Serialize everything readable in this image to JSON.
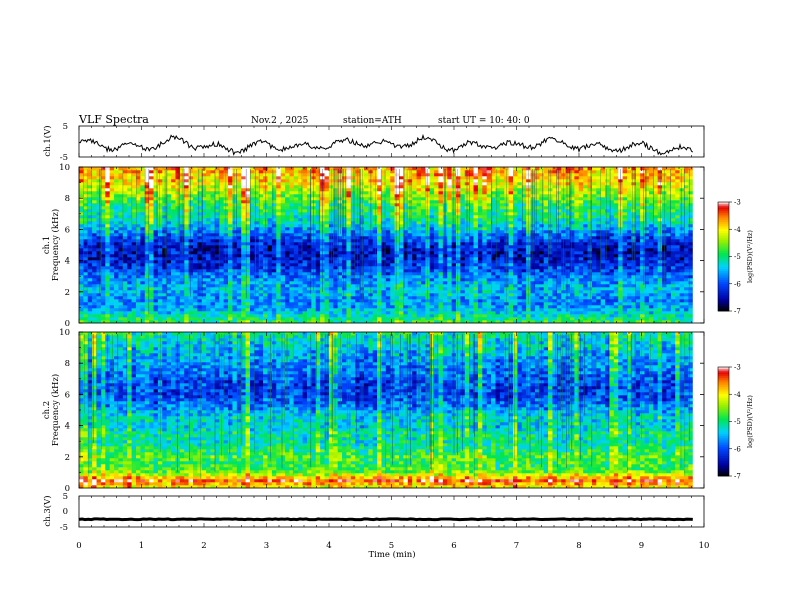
{
  "header": {
    "title": "VLF  Spectra",
    "date": "Nov.2  , 2025",
    "station": "station=ATH",
    "start": "start  UT  =    10: 40: 0"
  },
  "chart_data": [
    {
      "type": "line",
      "name": "ch1-waveform",
      "ylabel": "ch.1(V)",
      "ylim": [
        -5,
        5
      ],
      "yticks": [
        "5",
        "-5"
      ],
      "xlim": [
        0,
        10
      ],
      "data_extent_min": 9.82,
      "x": [
        0,
        0.5,
        1,
        1.5,
        2,
        2.5,
        3,
        3.5,
        4,
        4.5,
        5,
        5.5,
        6,
        6.5,
        7,
        7.5,
        8,
        8.5,
        9,
        9.5,
        9.82
      ],
      "values": [
        -0.5,
        -1.5,
        -2,
        0.5,
        -1.5,
        -2.5,
        -1,
        -2,
        -1,
        0,
        -1.5,
        0.5,
        -2,
        -1,
        -1.5,
        0,
        -1.5,
        -2,
        -1.5,
        -3,
        -2.5
      ]
    },
    {
      "type": "heatmap",
      "name": "ch1-spectrogram",
      "ylabel": "ch.1\nFrequency  (kHz)",
      "ylim": [
        0,
        10
      ],
      "yticks": [
        "0",
        "2",
        "4",
        "6",
        "8",
        "10"
      ],
      "xlim": [
        0,
        10
      ],
      "data_extent_min": 9.82,
      "freq_khz": [
        0,
        0.5,
        1,
        1.5,
        2,
        2.5,
        3,
        3.5,
        4,
        4.5,
        5,
        5.5,
        6,
        6.5,
        7,
        7.5,
        8,
        8.5,
        9,
        9.5,
        10
      ],
      "mean_log_psd": [
        -4.8,
        -5.2,
        -5.6,
        -5.7,
        -5.5,
        -5.6,
        -5.8,
        -6.1,
        -6.3,
        -6.4,
        -6.3,
        -6.0,
        -5.6,
        -5.2,
        -5.0,
        -4.9,
        -4.6,
        -4.3,
        -4.0,
        -3.8,
        -3.7
      ],
      "colorbar": {
        "label": "log(PSD)(V²/Hz)",
        "ticks": [
          "-3",
          "-4",
          "-5",
          "-6",
          "-7"
        ],
        "range": [
          -7,
          -3
        ]
      }
    },
    {
      "type": "heatmap",
      "name": "ch2-spectrogram",
      "ylabel": "ch.2\nFrequency  (kHz)",
      "ylim": [
        0,
        10
      ],
      "yticks": [
        "0",
        "2",
        "4",
        "6",
        "8",
        "10"
      ],
      "xlim": [
        0,
        10
      ],
      "data_extent_min": 9.82,
      "freq_khz": [
        0,
        0.5,
        1,
        1.5,
        2,
        2.5,
        3,
        3.5,
        4,
        4.5,
        5,
        5.5,
        6,
        6.5,
        7,
        7.5,
        8,
        8.5,
        9,
        9.5,
        10
      ],
      "mean_log_psd": [
        -4.2,
        -3.4,
        -4.6,
        -4.9,
        -4.7,
        -5.0,
        -5.2,
        -5.1,
        -5.4,
        -5.3,
        -5.6,
        -5.9,
        -6.1,
        -6.1,
        -6.0,
        -5.8,
        -5.7,
        -5.6,
        -5.4,
        -5.3,
        -5.1
      ],
      "colorbar": {
        "label": "log(PSD)(V²/Hz)",
        "ticks": [
          "-3",
          "-4",
          "-5",
          "-6",
          "-7"
        ],
        "range": [
          -7,
          -3
        ]
      }
    },
    {
      "type": "line",
      "name": "ch3-waveform",
      "ylabel": "ch.3(V)",
      "ylim": [
        -5,
        5
      ],
      "yticks": [
        "5",
        "0",
        "-5"
      ],
      "xlim": [
        0,
        10
      ],
      "data_extent_min": 9.82,
      "x": [
        0,
        9.82
      ],
      "values": [
        -2.5,
        -2.5
      ]
    }
  ],
  "xaxis": {
    "label": "Time  (min)",
    "ticks": [
      "0",
      "1",
      "2",
      "3",
      "4",
      "5",
      "6",
      "7",
      "8",
      "9",
      "10"
    ]
  }
}
